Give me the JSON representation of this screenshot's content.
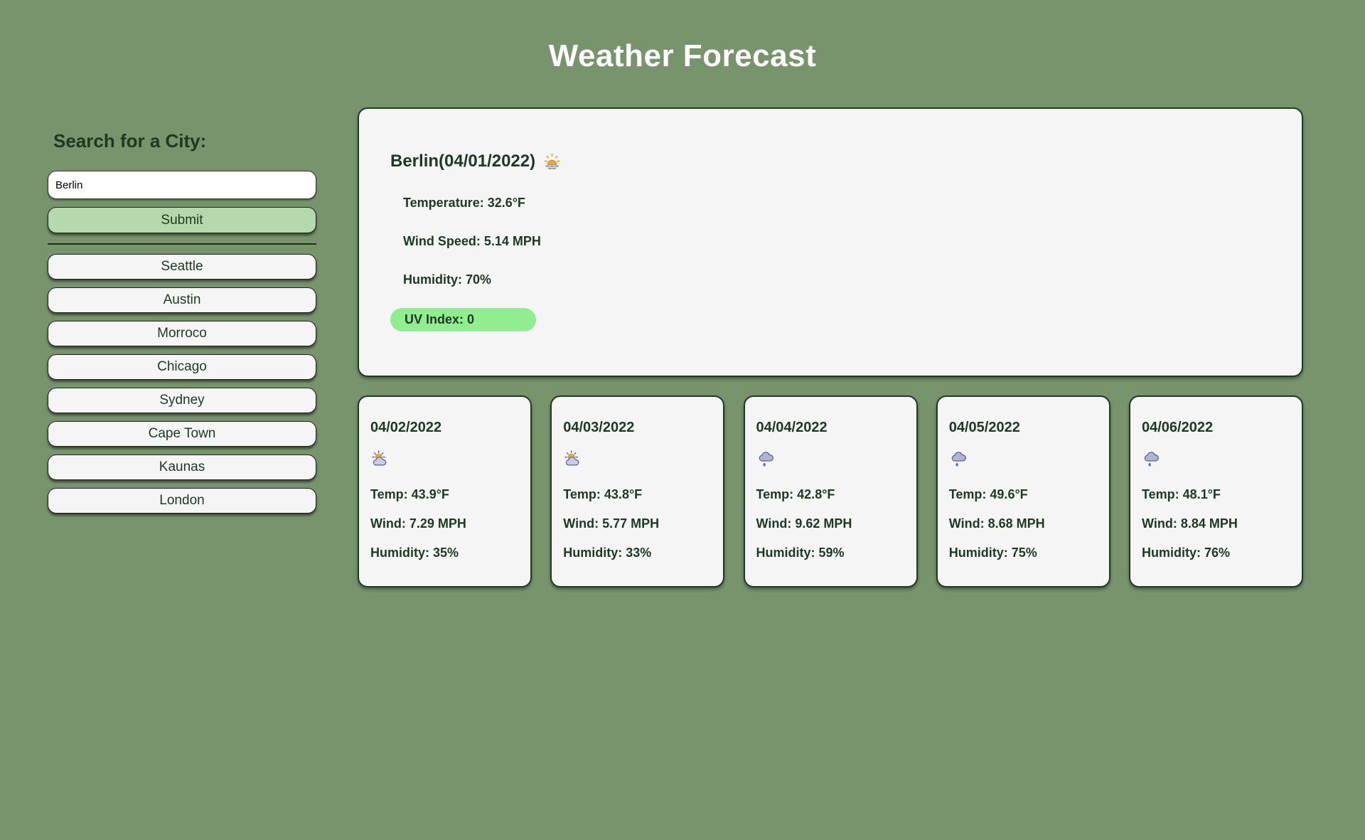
{
  "app": {
    "title": "Weather Forecast"
  },
  "colors": {
    "background": "#77946D",
    "text_dark_green": "#1C3A22",
    "card_background": "#F5F5F5",
    "submit_button_green": "#B5D8AC",
    "uv_badge_green": "#90EE90"
  },
  "sidebar": {
    "heading": "Search for a City:",
    "search_input": {
      "value": "Berlin",
      "placeholder": ""
    },
    "submit_label": "Submit",
    "cities": [
      "Seattle",
      "Austin",
      "Morroco",
      "Chicago",
      "Sydney",
      "Cape Town",
      "Kaunas",
      "London"
    ]
  },
  "current_weather": {
    "title": "Berlin(04/01/2022)",
    "icon": "sunrise-icon",
    "temperature": "Temperature: 32.6°F",
    "wind": "Wind Speed: 5.14 MPH",
    "humidity": "Humidity: 70%",
    "uv_index": "UV Index: 0"
  },
  "forecast": {
    "cards": [
      {
        "date": "04/02/2022",
        "icon": "sun-behind-cloud-icon",
        "temp": "Temp: 43.9°F",
        "wind": "Wind: 7.29 MPH",
        "humidity": "Humidity: 35%"
      },
      {
        "date": "04/03/2022",
        "icon": "sun-behind-cloud-icon",
        "temp": "Temp: 43.8°F",
        "wind": "Wind: 5.77 MPH",
        "humidity": "Humidity: 33%"
      },
      {
        "date": "04/04/2022",
        "icon": "rain-cloud-icon",
        "temp": "Temp: 42.8°F",
        "wind": "Wind: 9.62 MPH",
        "humidity": "Humidity: 59%"
      },
      {
        "date": "04/05/2022",
        "icon": "rain-cloud-icon",
        "temp": "Temp: 49.6°F",
        "wind": "Wind: 8.68 MPH",
        "humidity": "Humidity: 75%"
      },
      {
        "date": "04/06/2022",
        "icon": "rain-cloud-icon",
        "temp": "Temp: 48.1°F",
        "wind": "Wind: 8.84 MPH",
        "humidity": "Humidity: 76%"
      }
    ]
  }
}
